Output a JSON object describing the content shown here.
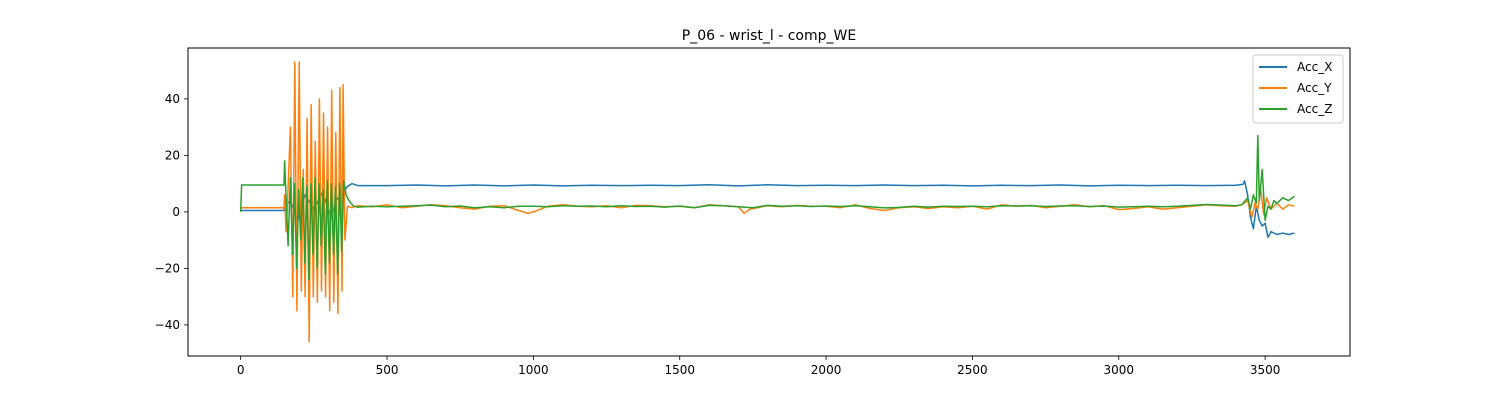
{
  "chart_data": {
    "type": "line",
    "title": "P_06 - wrist_l - comp_WE",
    "xlabel": "",
    "ylabel": "",
    "xlim": [
      -180,
      3790
    ],
    "ylim": [
      -51,
      58
    ],
    "xticks": [
      0,
      500,
      1000,
      1500,
      2000,
      2500,
      3000,
      3500
    ],
    "yticks": [
      -40,
      -20,
      0,
      20,
      40
    ],
    "grid": false,
    "legend_position": "top-right",
    "series": [
      {
        "name": "Acc_X",
        "color": "#1f77b4",
        "points": [
          [
            0,
            0.5
          ],
          [
            148,
            0.5
          ],
          [
            150,
            2
          ],
          [
            170,
            4
          ],
          [
            195,
            -3
          ],
          [
            220,
            6
          ],
          [
            250,
            1
          ],
          [
            280,
            7
          ],
          [
            310,
            -2
          ],
          [
            330,
            5
          ],
          [
            345,
            3
          ],
          [
            350,
            7
          ],
          [
            365,
            9
          ],
          [
            380,
            10
          ],
          [
            400,
            9.3
          ],
          [
            500,
            9.3
          ],
          [
            600,
            9.5
          ],
          [
            700,
            9.2
          ],
          [
            800,
            9.5
          ],
          [
            900,
            9.2
          ],
          [
            1000,
            9.5
          ],
          [
            1100,
            9.2
          ],
          [
            1200,
            9.4
          ],
          [
            1300,
            9.3
          ],
          [
            1400,
            9.4
          ],
          [
            1500,
            9.3
          ],
          [
            1600,
            9.6
          ],
          [
            1700,
            9.2
          ],
          [
            1800,
            9.6
          ],
          [
            1900,
            9.3
          ],
          [
            2000,
            9.4
          ],
          [
            2100,
            9.3
          ],
          [
            2200,
            9.5
          ],
          [
            2300,
            9.3
          ],
          [
            2400,
            9.4
          ],
          [
            2500,
            9.2
          ],
          [
            2600,
            9.4
          ],
          [
            2700,
            9.3
          ],
          [
            2800,
            9.5
          ],
          [
            2900,
            9.2
          ],
          [
            3000,
            9.4
          ],
          [
            3100,
            9.3
          ],
          [
            3200,
            9.4
          ],
          [
            3300,
            9.3
          ],
          [
            3400,
            9.4
          ],
          [
            3425,
            9.8
          ],
          [
            3430,
            11
          ],
          [
            3440,
            6
          ],
          [
            3450,
            -2
          ],
          [
            3460,
            -6
          ],
          [
            3470,
            2
          ],
          [
            3480,
            -3
          ],
          [
            3490,
            -5
          ],
          [
            3500,
            -4
          ],
          [
            3510,
            -9
          ],
          [
            3520,
            -7
          ],
          [
            3540,
            -8
          ],
          [
            3560,
            -7.5
          ],
          [
            3580,
            -8
          ],
          [
            3600,
            -7.5
          ]
        ]
      },
      {
        "name": "Acc_Y",
        "color": "#ff7f0e",
        "points": [
          [
            0,
            1.5
          ],
          [
            148,
            1.5
          ],
          [
            150,
            6
          ],
          [
            155,
            -7
          ],
          [
            160,
            3
          ],
          [
            170,
            30
          ],
          [
            178,
            -30
          ],
          [
            185,
            53
          ],
          [
            192,
            -35
          ],
          [
            200,
            53
          ],
          [
            207,
            -28
          ],
          [
            214,
            15
          ],
          [
            220,
            -30
          ],
          [
            227,
            33
          ],
          [
            234,
            -46
          ],
          [
            241,
            38
          ],
          [
            248,
            -30
          ],
          [
            255,
            25
          ],
          [
            262,
            -32
          ],
          [
            269,
            40
          ],
          [
            276,
            -28
          ],
          [
            283,
            35
          ],
          [
            290,
            -30
          ],
          [
            297,
            30
          ],
          [
            304,
            -35
          ],
          [
            311,
            43
          ],
          [
            318,
            -32
          ],
          [
            325,
            28
          ],
          [
            332,
            -36
          ],
          [
            339,
            44
          ],
          [
            346,
            -28
          ],
          [
            350,
            45
          ],
          [
            356,
            -10
          ],
          [
            365,
            2
          ],
          [
            380,
            1.5
          ],
          [
            400,
            2.2
          ],
          [
            450,
            1.8
          ],
          [
            500,
            2.5
          ],
          [
            550,
            1.5
          ],
          [
            600,
            2
          ],
          [
            650,
            2.5
          ],
          [
            700,
            2.2
          ],
          [
            750,
            1.5
          ],
          [
            800,
            1
          ],
          [
            850,
            2
          ],
          [
            900,
            2.2
          ],
          [
            950,
            0.5
          ],
          [
            980,
            -0.5
          ],
          [
            1000,
            0
          ],
          [
            1050,
            2
          ],
          [
            1100,
            2.5
          ],
          [
            1150,
            2
          ],
          [
            1200,
            1.8
          ],
          [
            1250,
            2.2
          ],
          [
            1300,
            1.5
          ],
          [
            1350,
            2.3
          ],
          [
            1400,
            2.2
          ],
          [
            1450,
            1.8
          ],
          [
            1500,
            2
          ],
          [
            1550,
            1.5
          ],
          [
            1600,
            2.5
          ],
          [
            1650,
            2.2
          ],
          [
            1700,
            1.8
          ],
          [
            1720,
            -0.5
          ],
          [
            1740,
            1
          ],
          [
            1800,
            2.2
          ],
          [
            1850,
            1.8
          ],
          [
            1900,
            2.3
          ],
          [
            1950,
            2
          ],
          [
            2000,
            2
          ],
          [
            2050,
            1.5
          ],
          [
            2100,
            2.5
          ],
          [
            2150,
            1.2
          ],
          [
            2200,
            0.5
          ],
          [
            2250,
            1.5
          ],
          [
            2300,
            1.8
          ],
          [
            2350,
            1.2
          ],
          [
            2400,
            1.8
          ],
          [
            2450,
            1.5
          ],
          [
            2500,
            2
          ],
          [
            2550,
            1
          ],
          [
            2600,
            2.5
          ],
          [
            2650,
            2
          ],
          [
            2700,
            2.3
          ],
          [
            2750,
            1.5
          ],
          [
            2800,
            2
          ],
          [
            2850,
            2.5
          ],
          [
            2900,
            1.8
          ],
          [
            2950,
            2.2
          ],
          [
            3000,
            0.8
          ],
          [
            3050,
            1.2
          ],
          [
            3100,
            1.8
          ],
          [
            3150,
            1
          ],
          [
            3200,
            1.5
          ],
          [
            3250,
            2
          ],
          [
            3300,
            2.5
          ],
          [
            3350,
            2.2
          ],
          [
            3400,
            2
          ],
          [
            3420,
            2.5
          ],
          [
            3440,
            4
          ],
          [
            3455,
            -2
          ],
          [
            3465,
            3
          ],
          [
            3475,
            1
          ],
          [
            3485,
            8
          ],
          [
            3495,
            -1
          ],
          [
            3505,
            5
          ],
          [
            3520,
            1
          ],
          [
            3540,
            3
          ],
          [
            3560,
            1
          ],
          [
            3580,
            2.5
          ],
          [
            3600,
            2
          ]
        ]
      },
      {
        "name": "Acc_Z",
        "color": "#2ca02c",
        "points": [
          [
            0,
            0
          ],
          [
            3,
            9.5
          ],
          [
            148,
            9.5
          ],
          [
            150,
            18
          ],
          [
            155,
            5
          ],
          [
            162,
            -12
          ],
          [
            170,
            12
          ],
          [
            177,
            -15
          ],
          [
            184,
            10
          ],
          [
            191,
            -20
          ],
          [
            198,
            8
          ],
          [
            205,
            -10
          ],
          [
            212,
            12
          ],
          [
            219,
            -18
          ],
          [
            226,
            9
          ],
          [
            233,
            -24
          ],
          [
            240,
            10
          ],
          [
            247,
            -15
          ],
          [
            254,
            12
          ],
          [
            261,
            -20
          ],
          [
            268,
            10
          ],
          [
            275,
            -12
          ],
          [
            282,
            8
          ],
          [
            289,
            -22
          ],
          [
            296,
            11
          ],
          [
            303,
            -18
          ],
          [
            310,
            10
          ],
          [
            317,
            -15
          ],
          [
            324,
            9
          ],
          [
            331,
            -22
          ],
          [
            338,
            10
          ],
          [
            345,
            -14
          ],
          [
            352,
            11
          ],
          [
            360,
            6
          ],
          [
            370,
            4
          ],
          [
            385,
            2
          ],
          [
            400,
            1.7
          ],
          [
            450,
            2
          ],
          [
            500,
            1.8
          ],
          [
            550,
            2
          ],
          [
            600,
            2.2
          ],
          [
            650,
            2.4
          ],
          [
            700,
            1.8
          ],
          [
            750,
            2.1
          ],
          [
            800,
            1.5
          ],
          [
            850,
            1.8
          ],
          [
            900,
            1.5
          ],
          [
            950,
            2
          ],
          [
            1000,
            2
          ],
          [
            1050,
            1.8
          ],
          [
            1100,
            2.2
          ],
          [
            1150,
            2
          ],
          [
            1200,
            2.1
          ],
          [
            1250,
            1.8
          ],
          [
            1300,
            2.2
          ],
          [
            1350,
            1.9
          ],
          [
            1400,
            2
          ],
          [
            1450,
            1.7
          ],
          [
            1500,
            2.1
          ],
          [
            1550,
            1.5
          ],
          [
            1600,
            2.3
          ],
          [
            1650,
            2.2
          ],
          [
            1700,
            1.8
          ],
          [
            1750,
            1.5
          ],
          [
            1800,
            2.3
          ],
          [
            1850,
            2
          ],
          [
            1900,
            2.2
          ],
          [
            1950,
            1.9
          ],
          [
            2000,
            2.1
          ],
          [
            2050,
            1.9
          ],
          [
            2100,
            2.2
          ],
          [
            2150,
            1.8
          ],
          [
            2200,
            1.4
          ],
          [
            2250,
            1.6
          ],
          [
            2300,
            2
          ],
          [
            2350,
            1.7
          ],
          [
            2400,
            2
          ],
          [
            2450,
            1.9
          ],
          [
            2500,
            2
          ],
          [
            2550,
            1.8
          ],
          [
            2600,
            2.2
          ],
          [
            2650,
            2.1
          ],
          [
            2700,
            2.2
          ],
          [
            2750,
            1.9
          ],
          [
            2800,
            2.1
          ],
          [
            2850,
            2.2
          ],
          [
            2900,
            1.9
          ],
          [
            2950,
            2.1
          ],
          [
            3000,
            1.7
          ],
          [
            3050,
            1.8
          ],
          [
            3100,
            2
          ],
          [
            3150,
            1.8
          ],
          [
            3200,
            2
          ],
          [
            3250,
            2.3
          ],
          [
            3300,
            2.6
          ],
          [
            3350,
            2.4
          ],
          [
            3400,
            2.2
          ],
          [
            3420,
            2.5
          ],
          [
            3440,
            5
          ],
          [
            3450,
            1
          ],
          [
            3460,
            6
          ],
          [
            3470,
            3
          ],
          [
            3475,
            27
          ],
          [
            3480,
            4
          ],
          [
            3490,
            15
          ],
          [
            3500,
            -3
          ],
          [
            3510,
            2
          ],
          [
            3520,
            1
          ],
          [
            3530,
            4
          ],
          [
            3540,
            3
          ],
          [
            3560,
            5
          ],
          [
            3580,
            4
          ],
          [
            3600,
            5.5
          ]
        ]
      }
    ]
  }
}
